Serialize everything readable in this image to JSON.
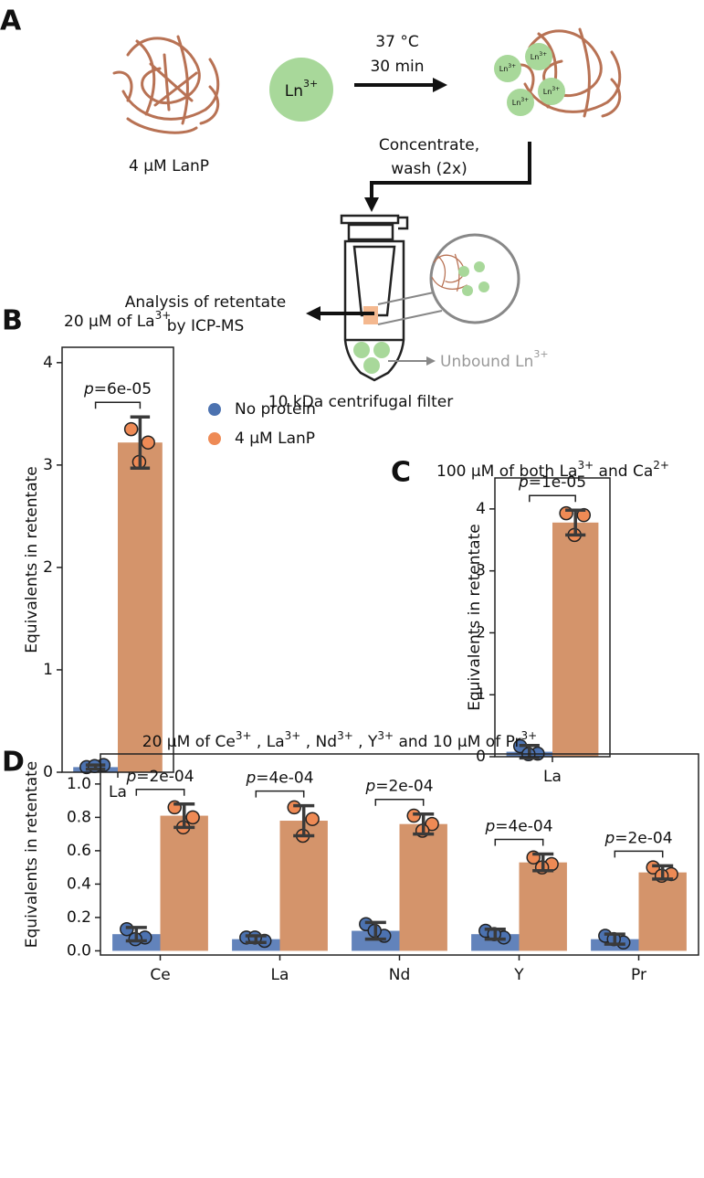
{
  "diagram": {
    "panel": "A",
    "protein_label": "4 μM LanP",
    "ion": [
      "Ln",
      "3+"
    ],
    "ion_small": [
      "Ln",
      "3+"
    ],
    "step1": [
      "37 °C",
      "30 min"
    ],
    "step2": [
      "Concentrate,",
      "wash (2x)"
    ],
    "analysis": [
      "Analysis of retentate",
      "by ICP-MS"
    ],
    "unbound": [
      "Unbound Ln",
      "3+"
    ],
    "filter_label": "10 kDa centrifugal filter"
  },
  "chart_data": [
    {
      "type": "bar",
      "panel": "B",
      "title": [
        "20 μM of La",
        {
          "sup": "3+"
        }
      ],
      "ylabel": "Equivalents in retentate",
      "categories": [
        "La"
      ],
      "ylim": [
        0,
        4.15
      ],
      "yticks": [
        0,
        1,
        2,
        3,
        4
      ],
      "grid": false,
      "legend": "right",
      "series": [
        {
          "name": "No protein",
          "color": "#4c72b0",
          "bar_color": "#6283bb",
          "values": [
            0.05
          ],
          "errors": [
            0.02
          ],
          "points": [
            [
              0.05,
              0.07,
              0.06
            ]
          ]
        },
        {
          "name": "4 μM LanP",
          "color": "#ee8a55",
          "bar_color": "#d4946b",
          "values": [
            3.22
          ],
          "errors": [
            0.25
          ],
          "points": [
            [
              3.35,
              3.22,
              3.03
            ]
          ]
        }
      ],
      "annotations": [
        [
          {
            "italic": "p"
          },
          "=6e-05"
        ]
      ]
    },
    {
      "type": "bar",
      "panel": "C",
      "title": [
        "100 μM of both La",
        {
          "sup": "3+"
        },
        " and Ca",
        {
          "sup": "2+"
        }
      ],
      "ylabel": "Equivalents in retentate",
      "categories": [
        "La"
      ],
      "ylim": [
        0,
        4.5
      ],
      "yticks": [
        0,
        1,
        2,
        3,
        4
      ],
      "grid": false,
      "legend": false,
      "series": [
        {
          "name": "No protein",
          "color": "#4c72b0",
          "bar_color": "#6283bb",
          "values": [
            0.08
          ],
          "errors": [
            0.1
          ],
          "points": [
            [
              0.17,
              0.05,
              0.04
            ]
          ]
        },
        {
          "name": "4 μM LanP",
          "color": "#ee8a55",
          "bar_color": "#d4946b",
          "values": [
            3.78
          ],
          "errors": [
            0.2
          ],
          "points": [
            [
              3.93,
              3.9,
              3.58
            ]
          ]
        }
      ],
      "annotations": [
        [
          {
            "italic": "p"
          },
          "=1e-05"
        ]
      ]
    },
    {
      "type": "bar",
      "panel": "D",
      "title": [
        "20 μM of Ce",
        {
          "sup": "3+"
        },
        " , La",
        {
          "sup": "3+"
        },
        " , Nd",
        {
          "sup": "3+"
        },
        " , Y",
        {
          "sup": "3+"
        },
        "  and 10 μM of Pr",
        {
          "sup": "3+"
        }
      ],
      "ylabel": "Equivalents in retentate",
      "categories": [
        "Ce",
        "La",
        "Nd",
        "Y",
        "Pr"
      ],
      "ylim": [
        -0.025,
        1.18
      ],
      "yticks": [
        {
          "value": 0,
          "label": "0.0"
        },
        0.2,
        0.4,
        0.6,
        0.8,
        {
          "value": 1,
          "label": "1.0"
        }
      ],
      "grid": false,
      "legend": false,
      "series": [
        {
          "name": "No protein",
          "color": "#4c72b0",
          "bar_color": "#6283bb",
          "values": [
            0.1,
            0.07,
            0.12,
            0.1,
            0.07
          ],
          "errors": [
            0.04,
            0.02,
            0.05,
            0.03,
            0.03
          ],
          "points": [
            [
              0.13,
              0.08,
              0.07
            ],
            [
              0.08,
              0.06,
              0.08
            ],
            [
              0.16,
              0.09,
              0.12
            ],
            [
              0.12,
              0.08,
              0.1
            ],
            [
              0.09,
              0.05,
              0.07
            ]
          ]
        },
        {
          "name": "4 μM LanP",
          "color": "#ee8a55",
          "bar_color": "#d4946b",
          "values": [
            0.81,
            0.78,
            0.76,
            0.53,
            0.47
          ],
          "errors": [
            0.07,
            0.09,
            0.06,
            0.05,
            0.04
          ],
          "points": [
            [
              0.86,
              0.8,
              0.74
            ],
            [
              0.86,
              0.79,
              0.69
            ],
            [
              0.81,
              0.76,
              0.72
            ],
            [
              0.56,
              0.52,
              0.5
            ],
            [
              0.5,
              0.46,
              0.45
            ]
          ]
        }
      ],
      "annotations": [
        [
          {
            "italic": "p"
          },
          "=2e-04"
        ],
        [
          {
            "italic": "p"
          },
          "=4e-04"
        ],
        [
          {
            "italic": "p"
          },
          "=2e-04"
        ],
        [
          {
            "italic": "p"
          },
          "=4e-04"
        ],
        [
          {
            "italic": "p"
          },
          "=2e-04"
        ]
      ]
    }
  ]
}
